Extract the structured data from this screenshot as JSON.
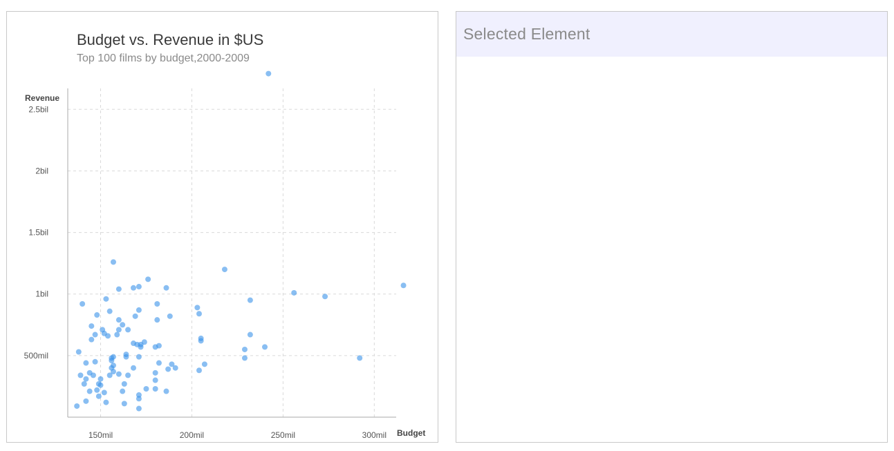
{
  "detail_panel": {
    "title": "Selected Element"
  },
  "chart_data": {
    "type": "scatter",
    "title": "Budget vs. Revenue in $US",
    "subtitle": "Top 100 films by budget,2000-2009",
    "xlabel": "Budget",
    "ylabel": "Revenue",
    "xlim": [
      132,
      312
    ],
    "ylim": [
      0,
      2.67
    ],
    "x_ticks": [
      {
        "value": 150,
        "label": "150mil"
      },
      {
        "value": 200,
        "label": "200mil"
      },
      {
        "value": 250,
        "label": "250mil"
      },
      {
        "value": 300,
        "label": "300mil"
      }
    ],
    "y_ticks": [
      {
        "value": 0.5,
        "label": "500mil"
      },
      {
        "value": 1.0,
        "label": "1bil"
      },
      {
        "value": 1.5,
        "label": "1.5bil"
      },
      {
        "value": 2.0,
        "label": "2bil"
      },
      {
        "value": 2.5,
        "label": "2.5bil"
      }
    ],
    "grid": true,
    "point_color": "#3a93ea",
    "points": [
      {
        "x": 137,
        "y": 0.09
      },
      {
        "x": 138,
        "y": 0.53
      },
      {
        "x": 139,
        "y": 0.34
      },
      {
        "x": 140,
        "y": 0.92
      },
      {
        "x": 141,
        "y": 0.27
      },
      {
        "x": 142,
        "y": 0.44
      },
      {
        "x": 142,
        "y": 0.31
      },
      {
        "x": 142,
        "y": 0.13
      },
      {
        "x": 144,
        "y": 0.21
      },
      {
        "x": 144,
        "y": 0.36
      },
      {
        "x": 145,
        "y": 0.74
      },
      {
        "x": 145,
        "y": 0.63
      },
      {
        "x": 146,
        "y": 0.34
      },
      {
        "x": 147,
        "y": 0.45
      },
      {
        "x": 147,
        "y": 0.67
      },
      {
        "x": 148,
        "y": 0.22
      },
      {
        "x": 148,
        "y": 0.83
      },
      {
        "x": 149,
        "y": 0.17
      },
      {
        "x": 149,
        "y": 0.27
      },
      {
        "x": 150,
        "y": 0.31
      },
      {
        "x": 150,
        "y": 0.26
      },
      {
        "x": 151,
        "y": 0.71
      },
      {
        "x": 152,
        "y": 0.68
      },
      {
        "x": 152,
        "y": 0.2
      },
      {
        "x": 153,
        "y": 0.96
      },
      {
        "x": 153,
        "y": 0.12
      },
      {
        "x": 154,
        "y": 0.66
      },
      {
        "x": 155,
        "y": 0.86
      },
      {
        "x": 155,
        "y": 0.34
      },
      {
        "x": 156,
        "y": 0.48
      },
      {
        "x": 156,
        "y": 0.46
      },
      {
        "x": 156,
        "y": 0.4
      },
      {
        "x": 157,
        "y": 1.26
      },
      {
        "x": 157,
        "y": 0.49
      },
      {
        "x": 157,
        "y": 0.37
      },
      {
        "x": 157,
        "y": 0.42
      },
      {
        "x": 159,
        "y": 0.67
      },
      {
        "x": 160,
        "y": 0.35
      },
      {
        "x": 160,
        "y": 0.79
      },
      {
        "x": 160,
        "y": 0.71
      },
      {
        "x": 160,
        "y": 1.04
      },
      {
        "x": 162,
        "y": 0.75
      },
      {
        "x": 162,
        "y": 0.21
      },
      {
        "x": 163,
        "y": 0.27
      },
      {
        "x": 163,
        "y": 0.11
      },
      {
        "x": 164,
        "y": 0.49
      },
      {
        "x": 164,
        "y": 0.51
      },
      {
        "x": 165,
        "y": 0.34
      },
      {
        "x": 165,
        "y": 0.71
      },
      {
        "x": 168,
        "y": 0.6
      },
      {
        "x": 168,
        "y": 0.4
      },
      {
        "x": 168,
        "y": 1.05
      },
      {
        "x": 169,
        "y": 0.82
      },
      {
        "x": 170,
        "y": 0.59
      },
      {
        "x": 171,
        "y": 0.87
      },
      {
        "x": 171,
        "y": 0.49
      },
      {
        "x": 171,
        "y": 1.06
      },
      {
        "x": 171,
        "y": 0.18
      },
      {
        "x": 171,
        "y": 0.15
      },
      {
        "x": 171,
        "y": 0.07
      },
      {
        "x": 172,
        "y": 0.57
      },
      {
        "x": 172,
        "y": 0.59
      },
      {
        "x": 174,
        "y": 0.61
      },
      {
        "x": 175,
        "y": 0.23
      },
      {
        "x": 176,
        "y": 1.12
      },
      {
        "x": 180,
        "y": 0.36
      },
      {
        "x": 180,
        "y": 0.3
      },
      {
        "x": 180,
        "y": 0.23
      },
      {
        "x": 180,
        "y": 0.57
      },
      {
        "x": 181,
        "y": 0.79
      },
      {
        "x": 181,
        "y": 0.92
      },
      {
        "x": 182,
        "y": 0.58
      },
      {
        "x": 182,
        "y": 0.44
      },
      {
        "x": 186,
        "y": 1.05
      },
      {
        "x": 186,
        "y": 0.21
      },
      {
        "x": 187,
        "y": 0.39
      },
      {
        "x": 188,
        "y": 0.82
      },
      {
        "x": 189,
        "y": 0.43
      },
      {
        "x": 191,
        "y": 0.4
      },
      {
        "x": 203,
        "y": 0.89
      },
      {
        "x": 204,
        "y": 0.84
      },
      {
        "x": 204,
        "y": 0.38
      },
      {
        "x": 205,
        "y": 0.64
      },
      {
        "x": 205,
        "y": 0.62
      },
      {
        "x": 207,
        "y": 0.43
      },
      {
        "x": 218,
        "y": 1.2
      },
      {
        "x": 229,
        "y": 0.55
      },
      {
        "x": 229,
        "y": 0.48
      },
      {
        "x": 232,
        "y": 0.95
      },
      {
        "x": 232,
        "y": 0.67
      },
      {
        "x": 240,
        "y": 0.57
      },
      {
        "x": 242,
        "y": 2.79
      },
      {
        "x": 256,
        "y": 1.01
      },
      {
        "x": 273,
        "y": 0.98
      },
      {
        "x": 292,
        "y": 0.48
      },
      {
        "x": 316,
        "y": 1.07
      }
    ]
  }
}
